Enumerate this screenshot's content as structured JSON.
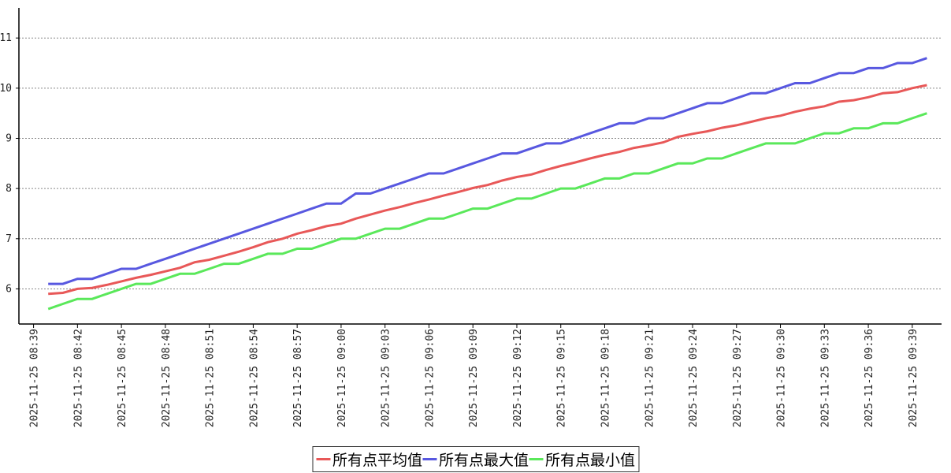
{
  "chart_data": {
    "type": "line",
    "x": [
      "2025-11-25 08:40",
      "2025-11-25 08:41",
      "2025-11-25 08:42",
      "2025-11-25 08:43",
      "2025-11-25 08:44",
      "2025-11-25 08:45",
      "2025-11-25 08:46",
      "2025-11-25 08:47",
      "2025-11-25 08:48",
      "2025-11-25 08:49",
      "2025-11-25 08:50",
      "2025-11-25 08:51",
      "2025-11-25 08:52",
      "2025-11-25 08:53",
      "2025-11-25 08:54",
      "2025-11-25 08:55",
      "2025-11-25 08:56",
      "2025-11-25 08:57",
      "2025-11-25 08:58",
      "2025-11-25 08:59",
      "2025-11-25 09:00",
      "2025-11-25 09:01",
      "2025-11-25 09:02",
      "2025-11-25 09:03",
      "2025-11-25 09:04",
      "2025-11-25 09:05",
      "2025-11-25 09:06",
      "2025-11-25 09:07",
      "2025-11-25 09:08",
      "2025-11-25 09:09",
      "2025-11-25 09:10",
      "2025-11-25 09:11",
      "2025-11-25 09:12",
      "2025-11-25 09:13",
      "2025-11-25 09:14",
      "2025-11-25 09:15",
      "2025-11-25 09:16",
      "2025-11-25 09:17",
      "2025-11-25 09:18",
      "2025-11-25 09:19",
      "2025-11-25 09:20",
      "2025-11-25 09:21",
      "2025-11-25 09:22",
      "2025-11-25 09:23",
      "2025-11-25 09:24",
      "2025-11-25 09:25",
      "2025-11-25 09:26",
      "2025-11-25 09:27",
      "2025-11-25 09:28",
      "2025-11-25 09:29",
      "2025-11-25 09:30",
      "2025-11-25 09:31",
      "2025-11-25 09:32",
      "2025-11-25 09:33",
      "2025-11-25 09:34",
      "2025-11-25 09:35",
      "2025-11-25 09:36",
      "2025-11-25 09:37",
      "2025-11-25 09:38",
      "2025-11-25 09:39",
      "2025-11-25 09:40"
    ],
    "series": [
      {
        "name": "所有点平均值",
        "color": "#e85858",
        "values": [
          5.9,
          5.92,
          6.0,
          6.02,
          6.08,
          6.15,
          6.22,
          6.28,
          6.35,
          6.42,
          6.53,
          6.58,
          6.66,
          6.74,
          6.83,
          6.93,
          7.0,
          7.1,
          7.17,
          7.25,
          7.3,
          7.4,
          7.48,
          7.56,
          7.63,
          7.71,
          7.78,
          7.86,
          7.93,
          8.01,
          8.07,
          8.16,
          8.23,
          8.28,
          8.37,
          8.45,
          8.52,
          8.6,
          8.67,
          8.73,
          8.81,
          8.86,
          8.92,
          9.03,
          9.09,
          9.14,
          9.21,
          9.26,
          9.33,
          9.4,
          9.45,
          9.53,
          9.59,
          9.64,
          9.73,
          9.76,
          9.82,
          9.9,
          9.92,
          10.0,
          10.06
        ]
      },
      {
        "name": "所有点最大值",
        "color": "#5858e0",
        "values": [
          6.1,
          6.1,
          6.2,
          6.2,
          6.3,
          6.4,
          6.4,
          6.5,
          6.6,
          6.7,
          6.8,
          6.9,
          7.0,
          7.1,
          7.2,
          7.3,
          7.4,
          7.5,
          7.6,
          7.7,
          7.7,
          7.9,
          7.9,
          8.0,
          8.1,
          8.2,
          8.3,
          8.3,
          8.4,
          8.5,
          8.6,
          8.7,
          8.7,
          8.8,
          8.9,
          8.9,
          9.0,
          9.1,
          9.2,
          9.3,
          9.3,
          9.4,
          9.4,
          9.5,
          9.6,
          9.7,
          9.7,
          9.8,
          9.9,
          9.9,
          10.0,
          10.1,
          10.1,
          10.2,
          10.3,
          10.3,
          10.4,
          10.4,
          10.5,
          10.5,
          10.6
        ]
      },
      {
        "name": "所有点最小值",
        "color": "#5ae85a",
        "values": [
          5.6,
          5.7,
          5.8,
          5.8,
          5.9,
          6.0,
          6.1,
          6.1,
          6.2,
          6.3,
          6.3,
          6.4,
          6.5,
          6.5,
          6.6,
          6.7,
          6.7,
          6.8,
          6.8,
          6.9,
          7.0,
          7.0,
          7.1,
          7.2,
          7.2,
          7.3,
          7.4,
          7.4,
          7.5,
          7.6,
          7.6,
          7.7,
          7.8,
          7.8,
          7.9,
          8.0,
          8.0,
          8.1,
          8.2,
          8.2,
          8.3,
          8.3,
          8.4,
          8.5,
          8.5,
          8.6,
          8.6,
          8.7,
          8.8,
          8.9,
          8.9,
          8.9,
          9.0,
          9.1,
          9.1,
          9.2,
          9.2,
          9.3,
          9.3,
          9.4,
          9.5
        ]
      }
    ],
    "xlim": [
      "2025-11-25 08:38",
      "2025-11-25 09:41"
    ],
    "xticks": [
      "2025-11-25 08:39",
      "2025-11-25 08:42",
      "2025-11-25 08:45",
      "2025-11-25 08:48",
      "2025-11-25 08:51",
      "2025-11-25 08:54",
      "2025-11-25 08:57",
      "2025-11-25 09:00",
      "2025-11-25 09:03",
      "2025-11-25 09:06",
      "2025-11-25 09:09",
      "2025-11-25 09:12",
      "2025-11-25 09:15",
      "2025-11-25 09:18",
      "2025-11-25 09:21",
      "2025-11-25 09:24",
      "2025-11-25 09:27",
      "2025-11-25 09:30",
      "2025-11-25 09:33",
      "2025-11-25 09:36",
      "2025-11-25 09:39"
    ],
    "ylim": [
      5.3,
      11.6
    ],
    "yticks": [
      6,
      7,
      8,
      9,
      10,
      11
    ],
    "grid": true,
    "legend": "bottom"
  }
}
